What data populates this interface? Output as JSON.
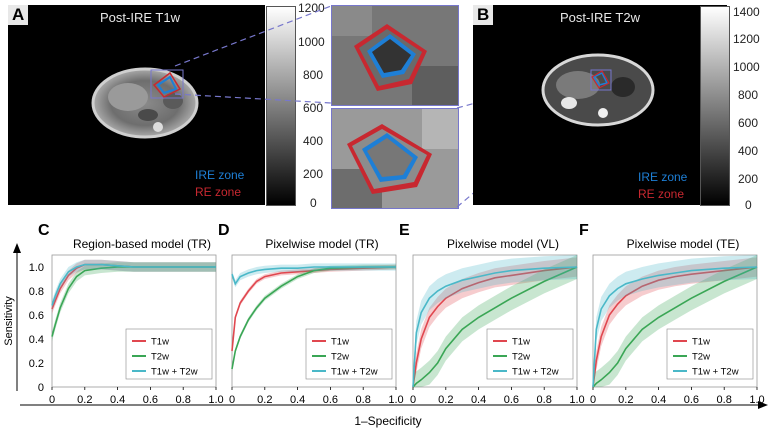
{
  "panels": {
    "A": {
      "letter": "A",
      "title": "Post-IRE T1w",
      "ire_label": "IRE zone",
      "re_label": "RE zone",
      "colorbar_ticks": [
        "1200",
        "1000",
        "800",
        "600",
        "400",
        "200",
        "0"
      ]
    },
    "B": {
      "letter": "B",
      "title": "Post-IRE T2w",
      "ire_label": "IRE zone",
      "re_label": "RE zone",
      "colorbar_ticks": [
        "1400",
        "1200",
        "1000",
        "800",
        "600",
        "400",
        "200",
        "0"
      ]
    }
  },
  "colors": {
    "ire": "#1e7fd6",
    "re": "#c82830",
    "t1w": "#e0474f",
    "t2w": "#3aa655",
    "combo": "#4ab8c8",
    "zoom_line": "#7777cc"
  },
  "chart_data": [
    {
      "type": "line",
      "letter": "C",
      "title": "Region-based model (TR)",
      "xlabel": "1–Specificity",
      "ylabel": "Sensitivity",
      "xlim": [
        0,
        1
      ],
      "ylim": [
        0,
        1.1
      ],
      "x_ticks": [
        "0",
        "0.2",
        "0.4",
        "0.6",
        "0.8",
        "1.0"
      ],
      "y_ticks": [
        "0",
        "0.2",
        "0.4",
        "0.6",
        "0.8",
        "1.0"
      ],
      "x": [
        0,
        0.02,
        0.05,
        0.1,
        0.15,
        0.2,
        0.3,
        0.4,
        0.5,
        0.6,
        0.8,
        1.0
      ],
      "series": [
        {
          "name": "T1w",
          "values": [
            0.65,
            0.72,
            0.82,
            0.93,
            0.99,
            1.02,
            1.02,
            1.01,
            1.0,
            1.0,
            1.0,
            1.0
          ],
          "band": 0.04
        },
        {
          "name": "T2w",
          "values": [
            0.42,
            0.52,
            0.66,
            0.82,
            0.92,
            0.97,
            0.99,
            1.0,
            1.0,
            1.0,
            1.0,
            1.0
          ],
          "band": 0.04
        },
        {
          "name": "T1w + T2w",
          "values": [
            0.68,
            0.76,
            0.86,
            0.96,
            1.0,
            1.02,
            1.02,
            1.01,
            1.0,
            1.0,
            1.0,
            1.0
          ],
          "band": 0.04
        }
      ]
    },
    {
      "type": "line",
      "letter": "D",
      "title": "Pixelwise model (TR)",
      "xlabel": "1–Specificity",
      "ylabel": "Sensitivity",
      "xlim": [
        0,
        1
      ],
      "ylim": [
        0,
        1.1
      ],
      "x_ticks": [
        "0",
        "0.2",
        "0.4",
        "0.6",
        "0.8",
        "1.0"
      ],
      "y_ticks": [
        "0",
        "0.2",
        "0.4",
        "0.6",
        "0.8",
        "1.0"
      ],
      "x": [
        0,
        0.02,
        0.05,
        0.1,
        0.15,
        0.2,
        0.3,
        0.4,
        0.5,
        0.6,
        0.8,
        1.0
      ],
      "series": [
        {
          "name": "T1w",
          "values": [
            0.3,
            0.58,
            0.7,
            0.8,
            0.88,
            0.92,
            0.95,
            0.96,
            0.97,
            0.98,
            0.99,
            1.0
          ],
          "band": 0.02
        },
        {
          "name": "T2w",
          "values": [
            0.15,
            0.3,
            0.42,
            0.56,
            0.66,
            0.74,
            0.84,
            0.92,
            0.97,
            0.99,
            1.0,
            1.0
          ],
          "band": 0.02
        },
        {
          "name": "T1w + T2w",
          "values": [
            0.94,
            0.86,
            0.92,
            0.95,
            0.97,
            0.98,
            0.99,
            0.99,
            1.0,
            1.0,
            1.0,
            1.0
          ],
          "band": 0.03
        }
      ]
    },
    {
      "type": "line",
      "letter": "E",
      "title": "Pixelwise model (VL)",
      "xlabel": "1–Specificity",
      "ylabel": "Sensitivity",
      "xlim": [
        0,
        1
      ],
      "ylim": [
        0,
        1.1
      ],
      "x_ticks": [
        "0",
        "0.2",
        "0.4",
        "0.6",
        "0.8",
        "1.0"
      ],
      "y_ticks": [
        "0",
        "0.2",
        "0.4",
        "0.6",
        "0.8",
        "1.0"
      ],
      "x": [
        0,
        0.02,
        0.05,
        0.1,
        0.15,
        0.2,
        0.3,
        0.4,
        0.5,
        0.6,
        0.8,
        1.0
      ],
      "series": [
        {
          "name": "T1w",
          "values": [
            0.0,
            0.2,
            0.4,
            0.58,
            0.67,
            0.74,
            0.82,
            0.87,
            0.91,
            0.93,
            0.97,
            1.0
          ],
          "band": 0.08
        },
        {
          "name": "T2w",
          "values": [
            0.0,
            0.03,
            0.06,
            0.12,
            0.2,
            0.32,
            0.48,
            0.58,
            0.66,
            0.74,
            0.88,
            1.0
          ],
          "band": 0.1
        },
        {
          "name": "T1w + T2w",
          "values": [
            0.0,
            0.45,
            0.62,
            0.74,
            0.8,
            0.84,
            0.89,
            0.92,
            0.95,
            0.97,
            0.99,
            1.0
          ],
          "band": 0.1
        }
      ]
    },
    {
      "type": "line",
      "letter": "F",
      "title": "Pixelwise model (TE)",
      "xlabel": "1–Specificity",
      "ylabel": "Sensitivity",
      "xlim": [
        0,
        1
      ],
      "ylim": [
        0,
        1.1
      ],
      "x_ticks": [
        "0",
        "0.2",
        "0.4",
        "0.6",
        "0.8",
        "1.0"
      ],
      "y_ticks": [
        "0",
        "0.2",
        "0.4",
        "0.6",
        "0.8",
        "1.0"
      ],
      "x": [
        0,
        0.02,
        0.05,
        0.1,
        0.15,
        0.2,
        0.3,
        0.4,
        0.5,
        0.6,
        0.8,
        1.0
      ],
      "series": [
        {
          "name": "T1w",
          "values": [
            0.0,
            0.22,
            0.42,
            0.6,
            0.69,
            0.76,
            0.84,
            0.89,
            0.92,
            0.94,
            0.97,
            1.0
          ],
          "band": 0.08
        },
        {
          "name": "T2w",
          "values": [
            0.0,
            0.03,
            0.06,
            0.12,
            0.2,
            0.32,
            0.48,
            0.58,
            0.66,
            0.74,
            0.88,
            1.0
          ],
          "band": 0.1
        },
        {
          "name": "T1w + T2w",
          "values": [
            0.0,
            0.48,
            0.65,
            0.76,
            0.82,
            0.86,
            0.9,
            0.93,
            0.95,
            0.97,
            0.99,
            1.0
          ],
          "band": 0.1
        }
      ]
    }
  ]
}
